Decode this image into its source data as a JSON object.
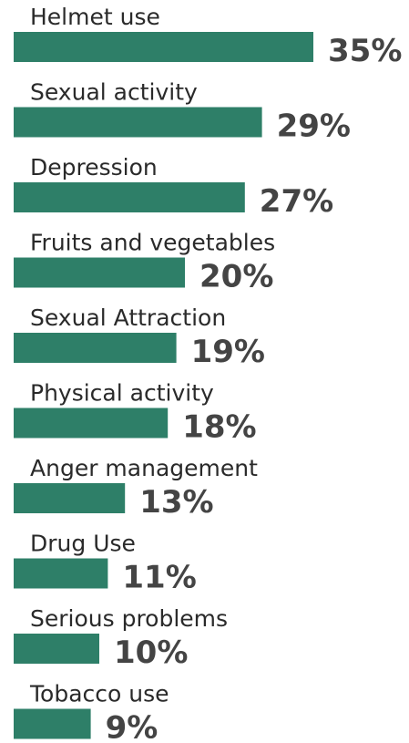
{
  "chart_data": {
    "type": "bar",
    "orientation": "horizontal",
    "categories": [
      "Helmet use",
      "Sexual activity",
      "Depression",
      "Fruits and vegetables",
      "Sexual Attraction",
      "Physical activity",
      "Anger management",
      "Drug Use",
      "Serious problems",
      "Tobacco use"
    ],
    "values": [
      35,
      29,
      27,
      20,
      19,
      18,
      13,
      11,
      10,
      9
    ],
    "value_labels": [
      "35%",
      "29%",
      "27%",
      "20%",
      "19%",
      "18%",
      "13%",
      "11%",
      "10%",
      "9%"
    ],
    "color": "#2e7f68"
  }
}
